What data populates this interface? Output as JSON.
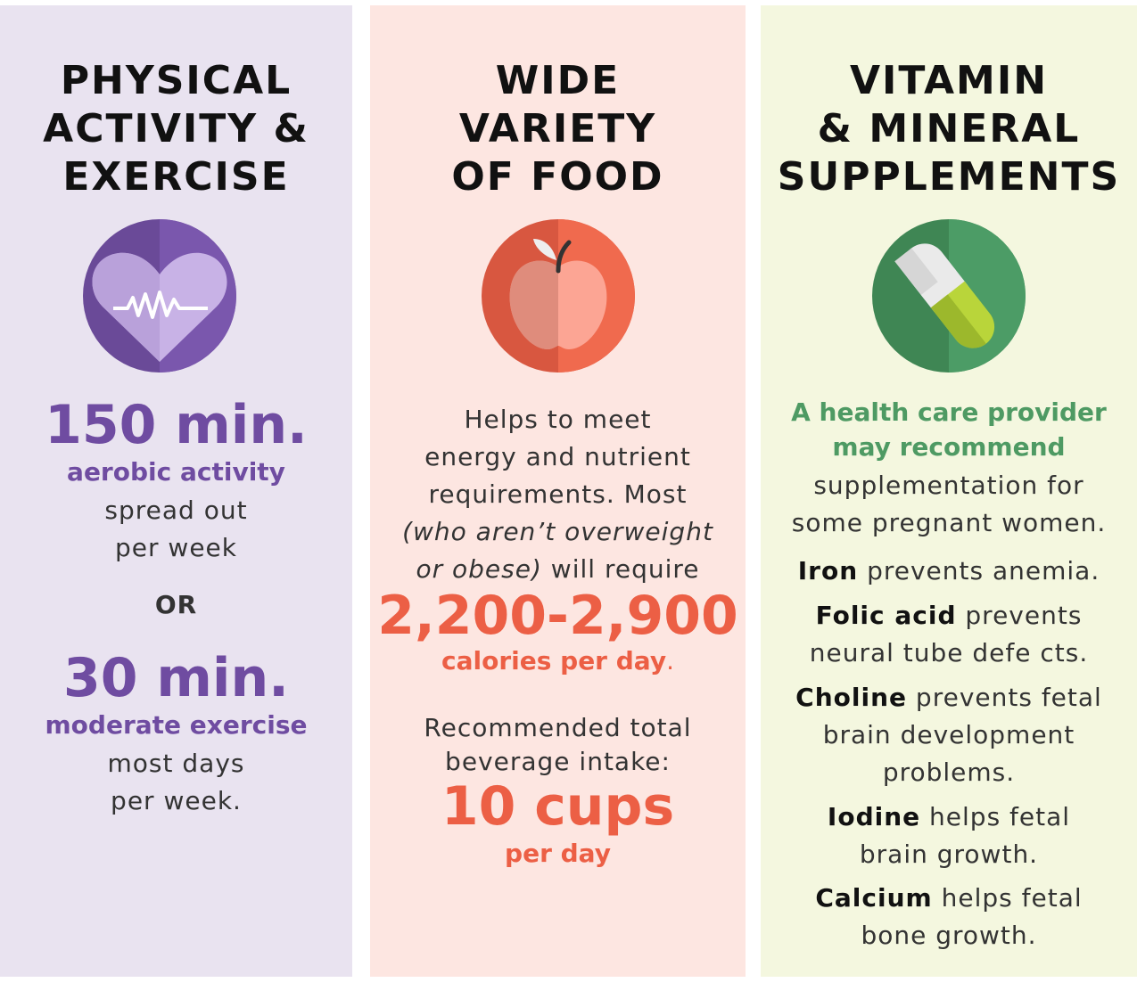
{
  "columns": [
    {
      "title_lines": [
        "PHYSICAL",
        "ACTIVITY &",
        "EXERCISE"
      ],
      "icon": "heart-pulse-icon",
      "primary": {
        "value": "150 min.",
        "label": "aerobic activity",
        "desc_lines": [
          "spread out",
          "per week"
        ]
      },
      "separator": "OR",
      "secondary": {
        "value": "30 min.",
        "label": "moderate exercise",
        "desc_lines": [
          "most days",
          "per week."
        ]
      }
    },
    {
      "title_lines": [
        "WIDE",
        "VARIETY",
        "OF FOOD"
      ],
      "icon": "apple-icon",
      "intro_lines": [
        "Helps to meet",
        "energy and nutrient",
        "requirements. Most"
      ],
      "italic_lines": [
        "(who aren’t overweight",
        "or obese)"
      ],
      "tail_text": " will require",
      "calories": {
        "value": "2,200-2,900",
        "label": "calories per day",
        "suffix": "."
      },
      "beverage": {
        "lines": [
          "Recommended total",
          "beverage intake:"
        ],
        "value": "10 cups",
        "label": "per day"
      }
    },
    {
      "title_lines": [
        "VITAMIN",
        "& MINERAL",
        "SUPPLEMENTS"
      ],
      "icon": "pill-capsule-icon",
      "highlight_lines": [
        "A health care provider",
        "may recommend"
      ],
      "intro_lines": [
        "supplementation for",
        "some pregnant women."
      ],
      "nutrients": [
        {
          "name": "Iron",
          "lines": [
            " prevents anemia."
          ]
        },
        {
          "name": "Folic acid",
          "lines": [
            " prevents",
            "neural tube defe cts."
          ]
        },
        {
          "name": "Choline",
          "lines": [
            " prevents fetal",
            "brain development",
            "problems."
          ]
        },
        {
          "name": "Iodine",
          "lines": [
            " helps fetal",
            "brain growth."
          ]
        },
        {
          "name": "Calcium",
          "lines": [
            " helps fetal",
            "bone growth."
          ]
        }
      ]
    }
  ],
  "colors": {
    "col1_bg": "#e9e3f0",
    "col2_bg": "#fde6e1",
    "col3_bg": "#f4f7df",
    "purple": "#6f4ca1",
    "coral": "#ec5f45",
    "green": "#4e9a63"
  }
}
